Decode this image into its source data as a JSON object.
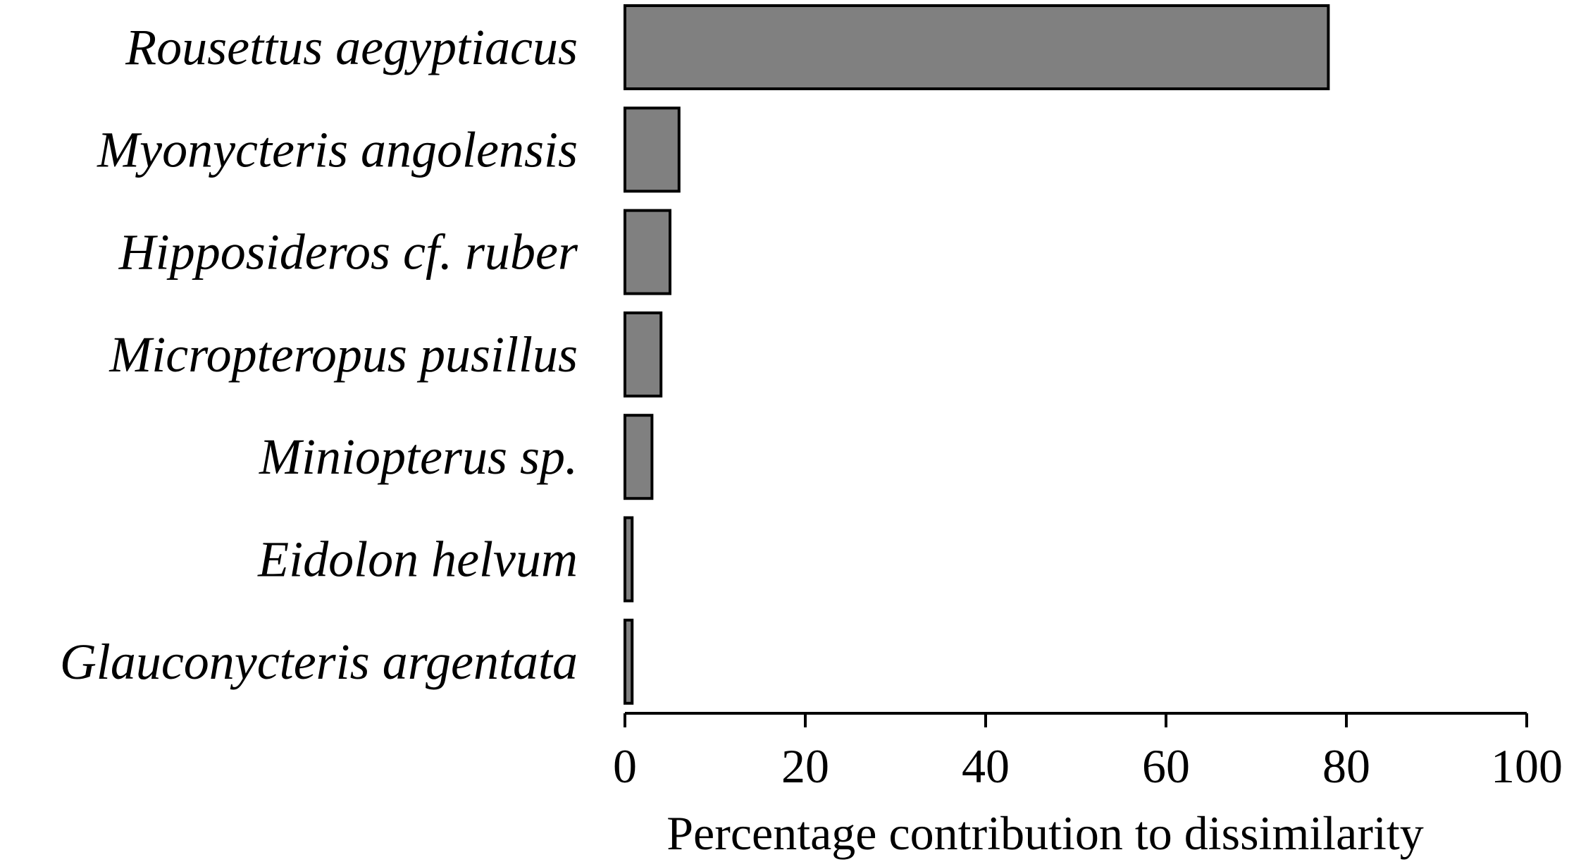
{
  "chart_data": {
    "type": "bar",
    "orientation": "horizontal",
    "categories": [
      "Rousettus aegyptiacus",
      "Myonycteris angolensis",
      "Hipposideros cf. ruber",
      "Micropteropus pusillus",
      "Miniopterus sp.",
      "Eidolon helvum",
      "Glauconycteris  argentata"
    ],
    "values": [
      78,
      6,
      5,
      4,
      3,
      0.8,
      0.8
    ],
    "xlabel": "Percentage contribution to dissimilarity",
    "ylabel": "",
    "xlim": [
      0,
      100
    ],
    "xticks": [
      "0",
      "20",
      "40",
      "60",
      "80",
      "100"
    ],
    "grid": false,
    "legend": "none",
    "bar_color": "#808080",
    "bar_edge_color": "#000000"
  }
}
